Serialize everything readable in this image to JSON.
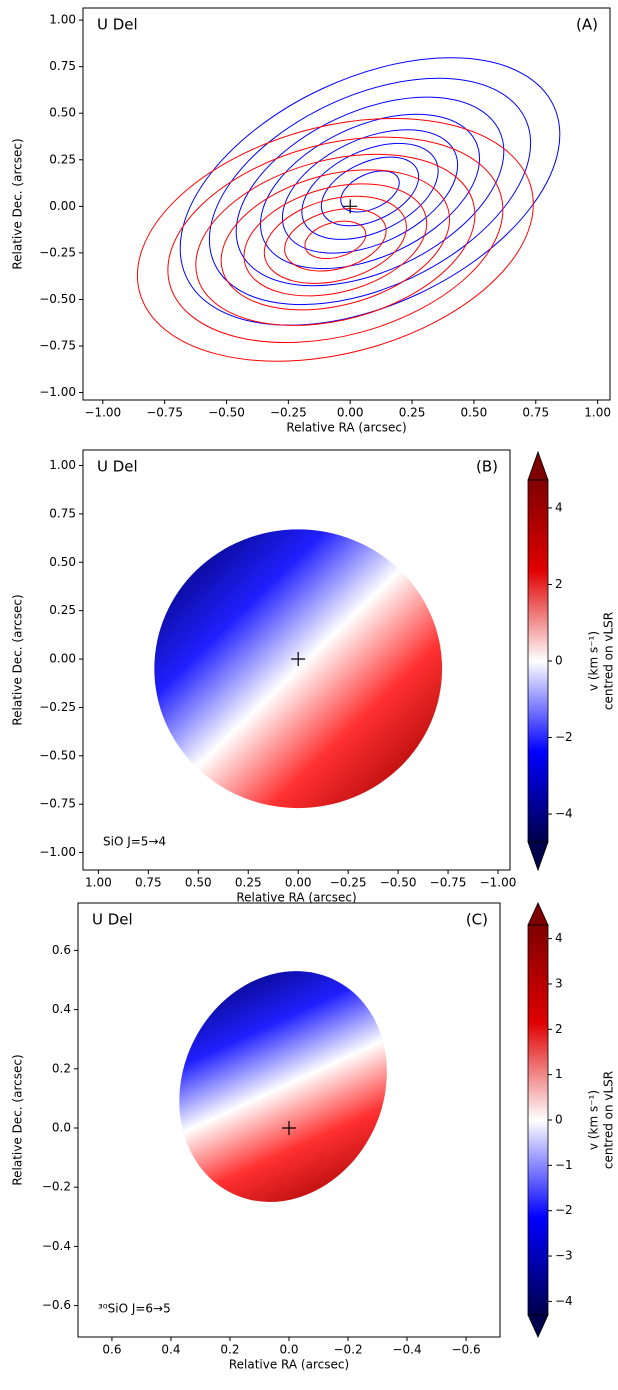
{
  "chart_data": [
    {
      "type": "contour",
      "title": "U Del",
      "panel_label": "(A)",
      "xlabel": "Relative RA (arcsec)",
      "ylabel": "Relative Dec. (arcsec)",
      "xlim": [
        -1.08,
        1.05
      ],
      "ylim": [
        -1.04,
        1.065
      ],
      "xticks": [
        {
          "value": -1,
          "label": "−1.00"
        },
        {
          "value": -0.75,
          "label": "−0.75"
        },
        {
          "value": -0.5,
          "label": "−0.50"
        },
        {
          "value": -0.25,
          "label": "−0.25"
        },
        {
          "value": 0,
          "label": "0.00"
        },
        0.25,
        {
          "value": 0.5,
          "label": "0.50"
        },
        0.75,
        {
          "value": 1,
          "label": "1.00"
        }
      ],
      "yticks": [
        {
          "value": -1,
          "label": "−1.00"
        },
        {
          "value": -0.75,
          "label": "−0.75"
        },
        {
          "value": -0.5,
          "label": "−0.50"
        },
        {
          "value": -0.25,
          "label": "−0.25"
        },
        {
          "value": 0,
          "label": "0.00"
        },
        0.25,
        {
          "value": 0.5,
          "label": "0.50"
        },
        0.75,
        {
          "value": 1,
          "label": "1.00"
        }
      ]
    },
    {
      "type": "velocity_map",
      "title": "U Del",
      "panel_label": "(B)",
      "xlabel": "Relative RA (arcsec)",
      "ylabel": "Relative Dec. (arcsec)",
      "annotation": "SiO  J=5→4",
      "xlim": [
        1.077,
        -1.06
      ],
      "ylim": [
        -1.09,
        1.08
      ],
      "xticks": [
        {
          "value": 1,
          "label": "1.00"
        },
        0.75,
        {
          "value": 0.5,
          "label": "0.50"
        },
        0.25,
        {
          "value": 0,
          "label": "0.00"
        },
        {
          "value": -0.25,
          "label": "−0.25"
        },
        {
          "value": -0.5,
          "label": "−0.50"
        },
        {
          "value": -0.75,
          "label": "−0.75"
        },
        {
          "value": -1,
          "label": "−1.00"
        }
      ],
      "yticks": [
        {
          "value": -1,
          "label": "−1.00"
        },
        {
          "value": -0.75,
          "label": "−0.75"
        },
        {
          "value": -0.5,
          "label": "−0.50"
        },
        {
          "value": -0.25,
          "label": "−0.25"
        },
        {
          "value": 0,
          "label": "0.00"
        },
        0.25,
        {
          "value": 0.5,
          "label": "0.50"
        },
        0.75,
        {
          "value": 1,
          "label": "1.00"
        }
      ],
      "colorbar": {
        "label": [
          "v (km s⁻¹)",
          "centred on vLSR"
        ],
        "lim": [
          -4.73,
          4.73
        ],
        "ticks": [
          {
            "value": -4,
            "label": "−4"
          },
          {
            "value": -2,
            "label": "−2"
          },
          0,
          2,
          4
        ]
      }
    },
    {
      "type": "velocity_map",
      "title": "U Del",
      "panel_label": "(C)",
      "xlabel": "Relative RA (arcsec)",
      "ylabel": "Relative Dec. (arcsec)",
      "annotation": "³⁰SiO  J=6→5",
      "xlim": [
        0.715,
        -0.715
      ],
      "ylim": [
        -0.706,
        0.76
      ],
      "xticks": [
        0.6,
        0.4,
        0.2,
        {
          "value": 0,
          "label": "0.0"
        },
        {
          "value": -0.2,
          "label": "−0.2"
        },
        {
          "value": -0.4,
          "label": "−0.4"
        },
        {
          "value": -0.6,
          "label": "−0.6"
        }
      ],
      "yticks": [
        {
          "value": -0.6,
          "label": "−0.6"
        },
        {
          "value": -0.4,
          "label": "−0.4"
        },
        {
          "value": -0.2,
          "label": "−0.2"
        },
        {
          "value": 0,
          "label": "0.0"
        },
        0.2,
        0.4,
        0.6
      ],
      "colorbar": {
        "label": [
          "v (km s⁻¹)",
          "centred on vLSR"
        ],
        "lim": [
          -4.3,
          4.3
        ],
        "ticks": [
          {
            "value": -4,
            "label": "−4"
          },
          {
            "value": -3,
            "label": "−3"
          },
          {
            "value": -2,
            "label": "−2"
          },
          {
            "value": -1,
            "label": "−1"
          },
          0,
          1,
          2,
          3,
          4
        ]
      }
    }
  ]
}
